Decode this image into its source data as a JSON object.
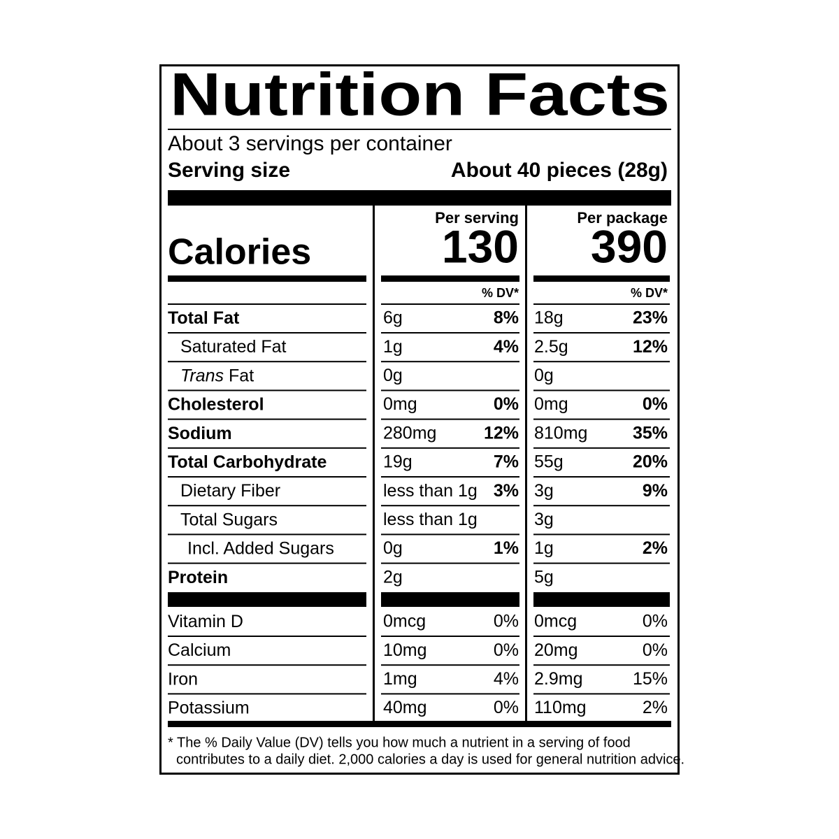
{
  "header": {
    "title": "Nutrition Facts",
    "servings": "About 3 servings per container",
    "serving_size_label": "Serving size",
    "serving_size_value": "About 40 pieces (28g)"
  },
  "calories": {
    "label": "Calories",
    "per_serving_heading": "Per serving",
    "per_serving_value": "130",
    "per_package_heading": "Per package",
    "per_package_value": "390",
    "dv_heading_serving": "% DV*",
    "dv_heading_package": "% DV*"
  },
  "nutrients": [
    {
      "name": "Total Fat",
      "serving_amount": "6g",
      "serving_dv": "8%",
      "package_amount": "18g",
      "package_dv": "23%"
    },
    {
      "name": "Saturated Fat",
      "serving_amount": "1g",
      "serving_dv": "4%",
      "package_amount": "2.5g",
      "package_dv": "12%"
    },
    {
      "name_italic": "Trans",
      "name": "Fat",
      "serving_amount": "0g",
      "package_amount": "0g"
    },
    {
      "name": "Cholesterol",
      "serving_amount": "0mg",
      "serving_dv": "0%",
      "package_amount": "0mg",
      "package_dv": "0%"
    },
    {
      "name": "Sodium",
      "serving_amount": "280mg",
      "serving_dv": "12%",
      "package_amount": "810mg",
      "package_dv": "35%"
    },
    {
      "name": "Total Carbohydrate",
      "serving_amount": "19g",
      "serving_dv": "7%",
      "package_amount": "55g",
      "package_dv": "20%"
    },
    {
      "name": "Dietary Fiber",
      "serving_amount": "less than 1g",
      "serving_dv": "3%",
      "package_amount": "3g",
      "package_dv": "9%"
    },
    {
      "name": "Total Sugars",
      "serving_amount": "less than 1g",
      "package_amount": "3g"
    },
    {
      "name": "Incl. Added Sugars",
      "serving_amount": "0g",
      "serving_dv": "1%",
      "package_amount": "1g",
      "package_dv": "2%"
    },
    {
      "name": "Protein",
      "serving_amount": "2g",
      "package_amount": "5g"
    }
  ],
  "vitamins": [
    {
      "name": "Vitamin D",
      "serving_amount": "0mcg",
      "serving_dv": "0%",
      "package_amount": "0mcg",
      "package_dv": "0%"
    },
    {
      "name": "Calcium",
      "serving_amount": "10mg",
      "serving_dv": "0%",
      "package_amount": "20mg",
      "package_dv": "0%"
    },
    {
      "name": "Iron",
      "serving_amount": "1mg",
      "serving_dv": "4%",
      "package_amount": "2.9mg",
      "package_dv": "15%"
    },
    {
      "name": "Potassium",
      "serving_amount": "40mg",
      "serving_dv": "0%",
      "package_amount": "110mg",
      "package_dv": "2%"
    }
  ],
  "footnote": [
    "* The % Daily Value (DV) tells you how much a nutrient in a serving of food",
    "contributes to a daily diet. 2,000 calories a day is used for general nutrition advice."
  ]
}
